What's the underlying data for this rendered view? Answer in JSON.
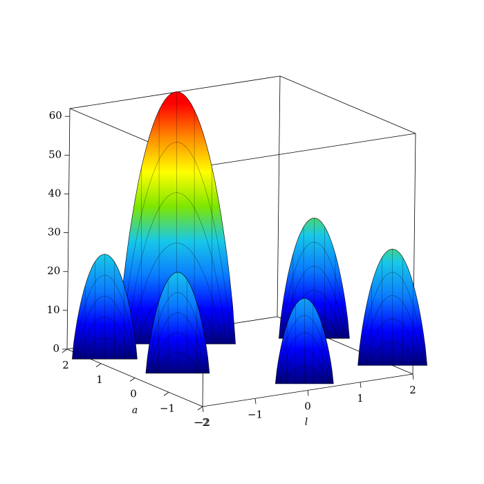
{
  "chart_data": {
    "type": "surface3d",
    "xlabel": "l",
    "ylabel": "a",
    "xlim": [
      -2,
      2
    ],
    "ylim": [
      -2,
      2
    ],
    "zlim": [
      0,
      62
    ],
    "xticks": [
      {
        "value": -2,
        "label": "−2"
      },
      {
        "value": -1,
        "label": "−1"
      },
      0,
      1,
      2
    ],
    "yticks": [
      {
        "value": -2,
        "label": "−2"
      },
      {
        "value": -1,
        "label": "−1"
      },
      0,
      1,
      2
    ],
    "zticks": [
      0,
      10,
      20,
      30,
      40,
      50,
      60
    ],
    "colormap": [
      "#00007a",
      "#0000ff",
      "#0a7cff",
      "#18c8e8",
      "#7ee600",
      "#ffff00",
      "#ff8c00",
      "#ff0000"
    ],
    "peaks": {
      "x": [
        -0.3,
        -1.8,
        -1.25,
        1.8,
        2.0,
        0.17
      ],
      "y": [
        1.4,
        1.2,
        -0.1,
        0.6,
        -1.4,
        -1.64
      ],
      "values": [
        65,
        27,
        26,
        31,
        30,
        22
      ]
    }
  }
}
